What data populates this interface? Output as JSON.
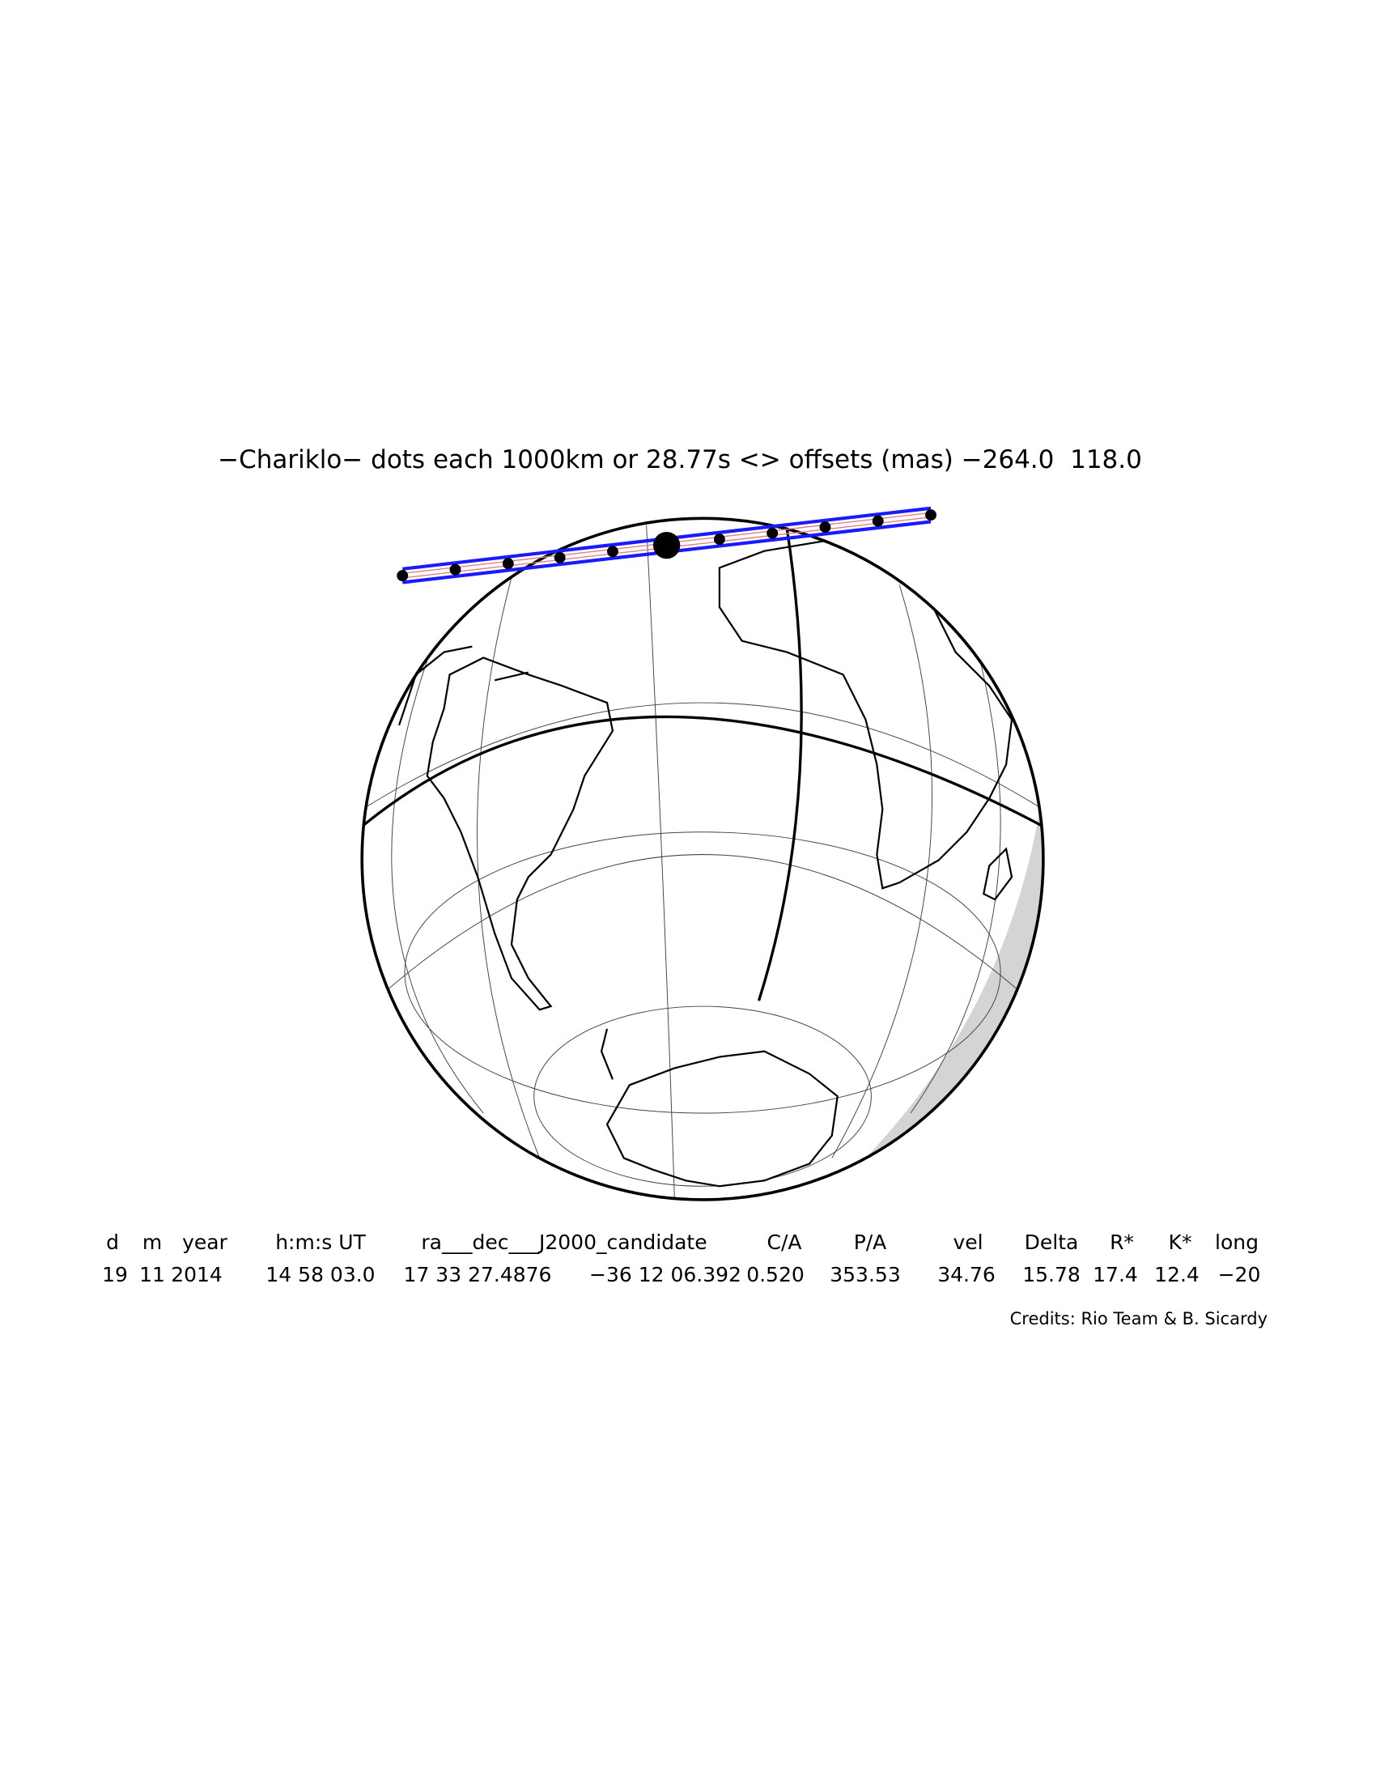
{
  "header": {
    "title": "−Chariklo− dots each 1000km or 28.77s <> offsets (mas) −264.0  118.0"
  },
  "table": {
    "columns": [
      "d",
      "m",
      "year",
      "h:m:s UT",
      "ra___dec___J2000_candidate",
      "C/A",
      "P/A",
      "vel",
      "Delta",
      "R*",
      "K*",
      "long"
    ],
    "rows": [
      [
        "19",
        "11",
        "2014",
        "14 58 03.0",
        "17 33 27.4876",
        "−36 12 06.392",
        "0.520",
        "353.53",
        "34.76",
        "15.78",
        "17.4",
        "12.4",
        "−20"
      ]
    ]
  },
  "credits": "Credits: Rio Team & B. Sicardy"
}
